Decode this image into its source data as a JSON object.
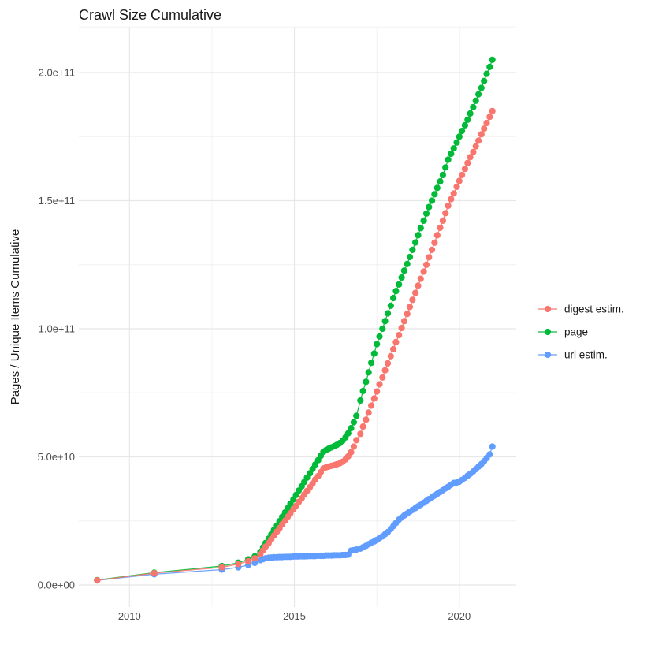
{
  "figure": {
    "title": "Crawl Size Cumulative",
    "y_axis_title": "Pages / Unique Items Cumulative"
  },
  "colors": {
    "digest": "#F8766D",
    "page": "#00BA38",
    "url": "#619CFF",
    "grid_major": "#E7E7E7",
    "grid_minor": "#F0F0F0",
    "tick_text": "#4D4D4D",
    "text": "#1A1A1A",
    "background": "#FFFFFF"
  },
  "chart_data": {
    "type": "scatter",
    "title": "Crawl Size Cumulative",
    "xlabel": "",
    "ylabel": "Pages / Unique Items Cumulative",
    "grid": true,
    "legend_position": "right",
    "x_unit": "year",
    "values_unit": "1e9 pages / unique items",
    "x_ticks": [
      {
        "value": 2010,
        "label": "2010"
      },
      {
        "value": 2015,
        "label": "2015"
      },
      {
        "value": 2020,
        "label": "2020"
      }
    ],
    "x_minor_ticks": [
      2012.5,
      2017.5
    ],
    "y_ticks": [
      {
        "value_e9": 0,
        "label": "0.0e+00"
      },
      {
        "value_e9": 50,
        "label": "5.0e+10"
      },
      {
        "value_e9": 100,
        "label": "1.0e+11"
      },
      {
        "value_e9": 150,
        "label": "1.5e+11"
      },
      {
        "value_e9": 200,
        "label": "2.0e+11"
      }
    ],
    "y_minor_ticks_e9": [
      25,
      75,
      125,
      175,
      217.8
    ],
    "xlim": [
      2008.5,
      2021.8
    ],
    "ylim_e9": [
      -8.6,
      217.8
    ],
    "series": [
      {
        "name": "digest estim.",
        "color": "#F8766D",
        "points": [
          [
            2009.02,
            1.8
          ],
          [
            2010.75,
            4.6
          ],
          [
            2012.8,
            6.9
          ],
          [
            2013.3,
            8.2
          ],
          [
            2013.6,
            9.3
          ],
          [
            2013.8,
            10.4
          ],
          [
            2013.97,
            12
          ],
          [
            2014.05,
            13.5
          ],
          [
            2014.13,
            15
          ],
          [
            2014.22,
            16.4
          ],
          [
            2014.3,
            17.9
          ],
          [
            2014.38,
            19.3
          ],
          [
            2014.47,
            20.8
          ],
          [
            2014.55,
            22.2
          ],
          [
            2014.63,
            23.7
          ],
          [
            2014.72,
            25.1
          ],
          [
            2014.8,
            26.6
          ],
          [
            2014.88,
            28
          ],
          [
            2014.97,
            29.5
          ],
          [
            2015.05,
            30.9
          ],
          [
            2015.13,
            32.4
          ],
          [
            2015.22,
            33.8
          ],
          [
            2015.3,
            35.3
          ],
          [
            2015.38,
            36.7
          ],
          [
            2015.47,
            38.2
          ],
          [
            2015.55,
            39.6
          ],
          [
            2015.63,
            41.1
          ],
          [
            2015.72,
            42.5
          ],
          [
            2015.8,
            44
          ],
          [
            2015.88,
            45.5
          ],
          [
            2015.96,
            45.9
          ],
          [
            2016.04,
            46.2
          ],
          [
            2016.13,
            46.5
          ],
          [
            2016.21,
            46.8
          ],
          [
            2016.29,
            47.1
          ],
          [
            2016.38,
            47.5
          ],
          [
            2016.46,
            48.1
          ],
          [
            2016.55,
            49
          ],
          [
            2016.63,
            50.2
          ],
          [
            2016.72,
            51.8
          ],
          [
            2016.8,
            54
          ],
          [
            2016.88,
            56.5
          ],
          [
            2017,
            59
          ],
          [
            2017.08,
            61.8
          ],
          [
            2017.17,
            64.5
          ],
          [
            2017.25,
            67.3
          ],
          [
            2017.33,
            70
          ],
          [
            2017.42,
            72.8
          ],
          [
            2017.5,
            75.5
          ],
          [
            2017.58,
            78.3
          ],
          [
            2017.67,
            81
          ],
          [
            2017.75,
            83.8
          ],
          [
            2017.83,
            86.5
          ],
          [
            2017.92,
            89.3
          ],
          [
            2018,
            92
          ],
          [
            2018.08,
            94.8
          ],
          [
            2018.17,
            97.5
          ],
          [
            2018.25,
            100.3
          ],
          [
            2018.33,
            103
          ],
          [
            2018.42,
            105.8
          ],
          [
            2018.5,
            108.5
          ],
          [
            2018.58,
            111.3
          ],
          [
            2018.67,
            114
          ],
          [
            2018.75,
            116.8
          ],
          [
            2018.83,
            119.5
          ],
          [
            2018.92,
            122.3
          ],
          [
            2019,
            125
          ],
          [
            2019.08,
            127.9
          ],
          [
            2019.17,
            130.8
          ],
          [
            2019.25,
            133.6
          ],
          [
            2019.33,
            136.5
          ],
          [
            2019.42,
            139.4
          ],
          [
            2019.5,
            142.2
          ],
          [
            2019.58,
            145.1
          ],
          [
            2019.66,
            148
          ],
          [
            2019.75,
            150.6
          ],
          [
            2019.83,
            152.8
          ],
          [
            2019.92,
            155.4
          ],
          [
            2020,
            157.7
          ],
          [
            2020.08,
            160
          ],
          [
            2020.17,
            162.4
          ],
          [
            2020.25,
            164.7
          ],
          [
            2020.33,
            167
          ],
          [
            2020.42,
            169
          ],
          [
            2020.5,
            171.2
          ],
          [
            2020.58,
            173.4
          ],
          [
            2020.67,
            175.9
          ],
          [
            2020.75,
            178.1
          ],
          [
            2020.83,
            180.3
          ],
          [
            2020.92,
            182.7
          ],
          [
            2021,
            185
          ]
        ]
      },
      {
        "name": "page",
        "color": "#00BA38",
        "points": [
          [
            2009.02,
            1.9
          ],
          [
            2010.75,
            4.8
          ],
          [
            2012.8,
            7.4
          ],
          [
            2013.3,
            8.7
          ],
          [
            2013.6,
            10
          ],
          [
            2013.8,
            11.2
          ],
          [
            2013.97,
            13
          ],
          [
            2014.05,
            14.7
          ],
          [
            2014.13,
            16.4
          ],
          [
            2014.22,
            18.1
          ],
          [
            2014.3,
            19.8
          ],
          [
            2014.38,
            21.5
          ],
          [
            2014.47,
            23.2
          ],
          [
            2014.55,
            24.9
          ],
          [
            2014.63,
            26.6
          ],
          [
            2014.72,
            28.3
          ],
          [
            2014.8,
            30
          ],
          [
            2014.88,
            31.7
          ],
          [
            2014.97,
            33.4
          ],
          [
            2015.05,
            35.1
          ],
          [
            2015.13,
            36.8
          ],
          [
            2015.22,
            38.5
          ],
          [
            2015.3,
            40.2
          ],
          [
            2015.38,
            41.9
          ],
          [
            2015.47,
            43.6
          ],
          [
            2015.55,
            45.3
          ],
          [
            2015.63,
            47
          ],
          [
            2015.72,
            48.7
          ],
          [
            2015.8,
            50.4
          ],
          [
            2015.88,
            52
          ],
          [
            2015.96,
            52.6
          ],
          [
            2016.04,
            53.2
          ],
          [
            2016.13,
            53.7
          ],
          [
            2016.21,
            54.2
          ],
          [
            2016.29,
            54.7
          ],
          [
            2016.38,
            55.4
          ],
          [
            2016.46,
            56.3
          ],
          [
            2016.55,
            57.6
          ],
          [
            2016.63,
            59.2
          ],
          [
            2016.72,
            61.2
          ],
          [
            2016.8,
            63.5
          ],
          [
            2016.88,
            66
          ],
          [
            2017,
            72
          ],
          [
            2017.08,
            75.7
          ],
          [
            2017.17,
            79.3
          ],
          [
            2017.25,
            83
          ],
          [
            2017.33,
            86.7
          ],
          [
            2017.42,
            90.3
          ],
          [
            2017.5,
            94
          ],
          [
            2017.58,
            97
          ],
          [
            2017.67,
            100
          ],
          [
            2017.75,
            103
          ],
          [
            2017.83,
            106
          ],
          [
            2017.92,
            109
          ],
          [
            2018,
            112
          ],
          [
            2018.08,
            114.7
          ],
          [
            2018.17,
            117.3
          ],
          [
            2018.25,
            120
          ],
          [
            2018.33,
            122.7
          ],
          [
            2018.42,
            125.3
          ],
          [
            2018.5,
            128
          ],
          [
            2018.58,
            130.8
          ],
          [
            2018.67,
            133.7
          ],
          [
            2018.75,
            136.5
          ],
          [
            2018.83,
            139.3
          ],
          [
            2018.92,
            142.2
          ],
          [
            2019,
            145
          ],
          [
            2019.08,
            147.5
          ],
          [
            2019.17,
            150
          ],
          [
            2019.25,
            152.5
          ],
          [
            2019.33,
            155
          ],
          [
            2019.42,
            157.5
          ],
          [
            2019.5,
            160
          ],
          [
            2019.58,
            163
          ],
          [
            2019.66,
            166
          ],
          [
            2019.75,
            168.3
          ],
          [
            2019.83,
            170.4
          ],
          [
            2019.92,
            172.7
          ],
          [
            2020,
            175
          ],
          [
            2020.08,
            177.2
          ],
          [
            2020.17,
            179.4
          ],
          [
            2020.25,
            181.6
          ],
          [
            2020.33,
            184
          ],
          [
            2020.42,
            186.5
          ],
          [
            2020.5,
            189
          ],
          [
            2020.58,
            191.5
          ],
          [
            2020.67,
            194
          ],
          [
            2020.75,
            196.7
          ],
          [
            2020.83,
            199.5
          ],
          [
            2020.92,
            202.2
          ],
          [
            2021,
            205
          ]
        ]
      },
      {
        "name": "url estim.",
        "color": "#619CFF",
        "points": [
          [
            2009.02,
            1.8
          ],
          [
            2010.75,
            4.2
          ],
          [
            2012.8,
            6
          ],
          [
            2013.3,
            6.9
          ],
          [
            2013.6,
            7.8
          ],
          [
            2013.8,
            8.6
          ],
          [
            2013.97,
            9.7
          ],
          [
            2014.05,
            10.1
          ],
          [
            2014.13,
            10.4
          ],
          [
            2014.22,
            10.6
          ],
          [
            2014.3,
            10.7
          ],
          [
            2014.38,
            10.8
          ],
          [
            2014.47,
            10.8
          ],
          [
            2014.55,
            10.9
          ],
          [
            2014.63,
            10.9
          ],
          [
            2014.72,
            11
          ],
          [
            2014.8,
            11
          ],
          [
            2014.88,
            11
          ],
          [
            2014.97,
            11.1
          ],
          [
            2015.05,
            11.1
          ],
          [
            2015.13,
            11.1
          ],
          [
            2015.22,
            11.2
          ],
          [
            2015.3,
            11.2
          ],
          [
            2015.38,
            11.2
          ],
          [
            2015.47,
            11.3
          ],
          [
            2015.55,
            11.3
          ],
          [
            2015.63,
            11.3
          ],
          [
            2015.72,
            11.4
          ],
          [
            2015.8,
            11.4
          ],
          [
            2015.88,
            11.4
          ],
          [
            2015.96,
            11.5
          ],
          [
            2016.04,
            11.5
          ],
          [
            2016.13,
            11.5
          ],
          [
            2016.21,
            11.6
          ],
          [
            2016.29,
            11.6
          ],
          [
            2016.38,
            11.6
          ],
          [
            2016.46,
            11.7
          ],
          [
            2016.55,
            11.7
          ],
          [
            2016.63,
            11.8
          ],
          [
            2016.72,
            13.4
          ],
          [
            2016.8,
            13.6
          ],
          [
            2016.88,
            13.8
          ],
          [
            2017,
            14.2
          ],
          [
            2017.08,
            14.7
          ],
          [
            2017.17,
            15.3
          ],
          [
            2017.25,
            15.9
          ],
          [
            2017.33,
            16.5
          ],
          [
            2017.42,
            17
          ],
          [
            2017.5,
            17.6
          ],
          [
            2017.58,
            18.3
          ],
          [
            2017.67,
            19
          ],
          [
            2017.75,
            19.8
          ],
          [
            2017.83,
            20.6
          ],
          [
            2017.92,
            21.8
          ],
          [
            2018,
            23
          ],
          [
            2018.08,
            24.2
          ],
          [
            2018.17,
            25.5
          ],
          [
            2018.25,
            26.3
          ],
          [
            2018.33,
            27.1
          ],
          [
            2018.42,
            27.9
          ],
          [
            2018.5,
            28.6
          ],
          [
            2018.58,
            29.3
          ],
          [
            2018.67,
            30
          ],
          [
            2018.75,
            30.7
          ],
          [
            2018.83,
            31.3
          ],
          [
            2018.92,
            32.1
          ],
          [
            2019,
            32.8
          ],
          [
            2019.08,
            33.5
          ],
          [
            2019.17,
            34.2
          ],
          [
            2019.25,
            34.9
          ],
          [
            2019.33,
            35.6
          ],
          [
            2019.42,
            36.3
          ],
          [
            2019.5,
            37
          ],
          [
            2019.58,
            37.7
          ],
          [
            2019.66,
            38.3
          ],
          [
            2019.75,
            39.1
          ],
          [
            2019.83,
            39.8
          ],
          [
            2019.92,
            40
          ],
          [
            2020,
            40.3
          ],
          [
            2020.08,
            41
          ],
          [
            2020.17,
            41.8
          ],
          [
            2020.25,
            42.6
          ],
          [
            2020.33,
            43.4
          ],
          [
            2020.42,
            44.3
          ],
          [
            2020.5,
            45.2
          ],
          [
            2020.58,
            46.2
          ],
          [
            2020.67,
            47.2
          ],
          [
            2020.75,
            48.3
          ],
          [
            2020.83,
            49.5
          ],
          [
            2020.92,
            51
          ],
          [
            2021,
            54
          ]
        ]
      }
    ]
  }
}
